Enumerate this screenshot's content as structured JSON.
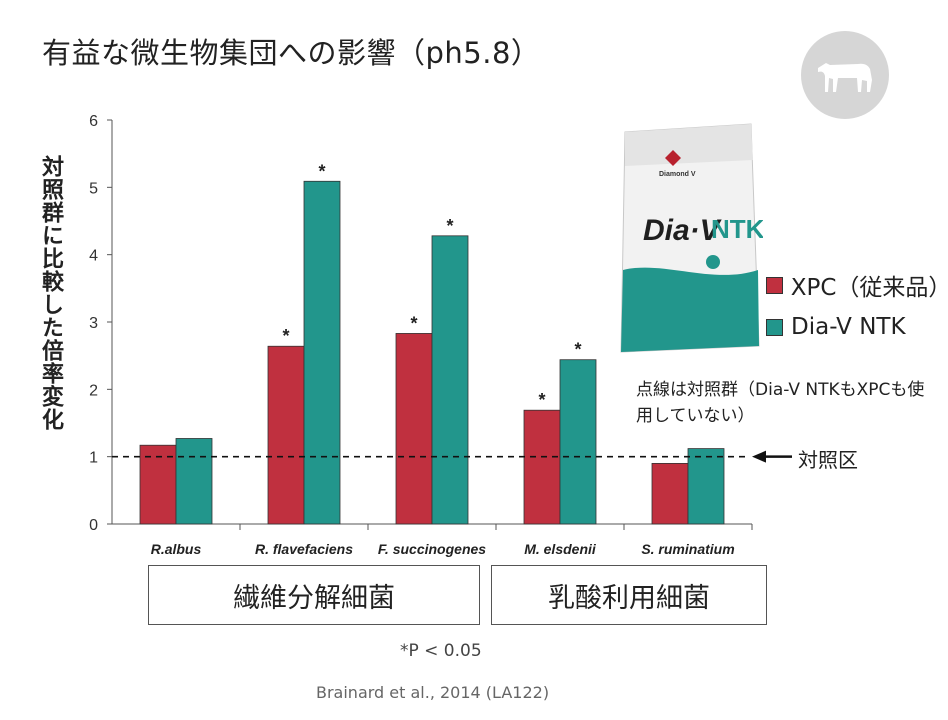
{
  "title": "有益な微生物集団への影響（ph5.8）",
  "chart_data": {
    "type": "bar",
    "ylabel": "対照群に比較した倍率変化",
    "ylim": [
      0,
      6
    ],
    "yticks": [
      0,
      1,
      2,
      3,
      4,
      5,
      6
    ],
    "categories": [
      "R.albus",
      "R. flavefaciens",
      "F. succinogenes",
      "M. elsdenii",
      "S. ruminatium"
    ],
    "series": [
      {
        "name": "XPC（従来品）",
        "color": "#c0303f",
        "values": [
          1.17,
          2.64,
          2.83,
          1.69,
          0.9
        ],
        "significant": [
          "",
          "*",
          "*",
          "*",
          ""
        ]
      },
      {
        "name": "Dia-V NTK",
        "color": "#22968c",
        "values": [
          1.27,
          5.09,
          4.28,
          2.44,
          1.12
        ],
        "significant": [
          "",
          "*",
          "*",
          "*",
          ""
        ]
      }
    ],
    "reference_line": {
      "value": 1,
      "label": "対照区"
    },
    "groups": [
      {
        "label": "繊維分解細菌"
      },
      {
        "label": "乳酸利用細菌"
      }
    ],
    "legend_position": "right",
    "grid": false
  },
  "note": "点線は対照群（Dia-V NTKもXPCも使用していない）",
  "footnote": "*P < 0.05",
  "citation": "Brainard et al., 2014 (LA122)",
  "product": {
    "brand": "Diamond V",
    "name_part1": "Dia·V",
    "name_part2": "NTK"
  },
  "colors": {
    "xpc": "#c0303f",
    "ntk": "#22968c",
    "badge": "#d6d6d6"
  }
}
